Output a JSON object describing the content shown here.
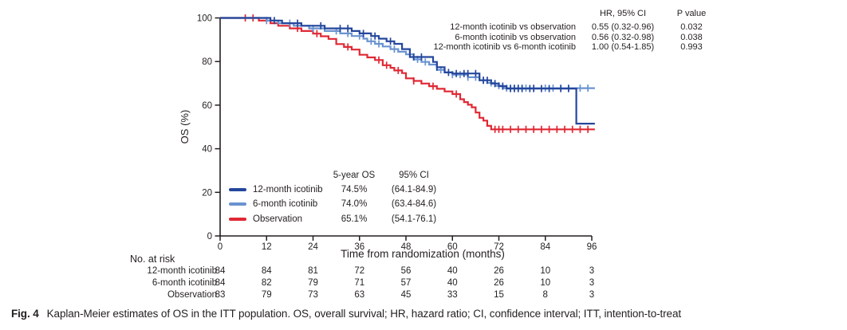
{
  "figure": {
    "caption_label": "Fig. 4",
    "caption_text": "Kaplan-Meier estimates of OS in the ITT population. OS, overall survival; HR, hazard ratio; CI, confidence interval; ITT, intention-to-treat"
  },
  "hr_table": {
    "col_hr": "HR, 95% CI",
    "col_p": "P value",
    "rows": [
      {
        "label": "12-month icotinib vs observation",
        "hr": "0.55 (0.32-0.96)",
        "p": "0.032"
      },
      {
        "label": "6-month icotinib vs observation",
        "hr": "0.56 (0.32-0.98)",
        "p": "0.038"
      },
      {
        "label": "12-month icotinib vs 6-month icotinib",
        "hr": "1.00 (0.54-1.85)",
        "p": "0.993"
      }
    ]
  },
  "legend": {
    "col_os": "5-year OS",
    "col_ci": "95% CI",
    "rows": [
      {
        "label": "12-month icotinib",
        "os": "74.5%",
        "ci": "(64.1-84.9)",
        "color": "#24479c"
      },
      {
        "label": "6-month icotinib",
        "os": "74.0%",
        "ci": "(63.4-84.6)",
        "color": "#6a93d0"
      },
      {
        "label": "Observation",
        "os": "65.1%",
        "ci": "(54.1-76.1)",
        "color": "#e02834"
      }
    ]
  },
  "at_risk": {
    "title": "No. at risk",
    "rows": [
      {
        "label": "12-month icotinib",
        "counts": [
          84,
          84,
          81,
          72,
          56,
          40,
          26,
          10,
          3
        ]
      },
      {
        "label": "6-month icotinib",
        "counts": [
          84,
          82,
          79,
          71,
          57,
          40,
          26,
          10,
          3
        ]
      },
      {
        "label": "Observation",
        "counts": [
          83,
          79,
          73,
          63,
          45,
          33,
          15,
          8,
          3
        ]
      }
    ]
  },
  "chart_data": {
    "type": "line",
    "subtype": "kaplan-meier-step",
    "title": "",
    "xlabel": "Time from randomization (months)",
    "ylabel": "OS (%)",
    "xlim": [
      0,
      96
    ],
    "ylim": [
      0,
      100
    ],
    "x_ticks": [
      0,
      12,
      24,
      36,
      48,
      60,
      72,
      84,
      96
    ],
    "y_ticks": [
      0,
      20,
      40,
      60,
      80,
      100
    ],
    "grid": false,
    "legend_position": "inside-lower-left",
    "axis_color": "#231f20",
    "series": [
      {
        "name": "Observation",
        "color": "#e02834",
        "five_year_os": 65.1,
        "five_year_ci": "(54.1-76.1)",
        "steps": [
          [
            0,
            100
          ],
          [
            10,
            98.8
          ],
          [
            13,
            97.6
          ],
          [
            15,
            96.4
          ],
          [
            18,
            95.2
          ],
          [
            21,
            94.0
          ],
          [
            24,
            92.8
          ],
          [
            26,
            91.6
          ],
          [
            28,
            90.4
          ],
          [
            30,
            88.0
          ],
          [
            32,
            86.7
          ],
          [
            34,
            85.5
          ],
          [
            36,
            83.1
          ],
          [
            38,
            81.9
          ],
          [
            40,
            80.7
          ],
          [
            42,
            78.3
          ],
          [
            44,
            77.1
          ],
          [
            45,
            75.9
          ],
          [
            47,
            74.7
          ],
          [
            48,
            72.3
          ],
          [
            50,
            71.1
          ],
          [
            52,
            69.9
          ],
          [
            54,
            68.7
          ],
          [
            56,
            67.5
          ],
          [
            58,
            66.3
          ],
          [
            60,
            65.1
          ],
          [
            62,
            62.7
          ],
          [
            63,
            61.4
          ],
          [
            64,
            60.2
          ],
          [
            65,
            59.0
          ],
          [
            66,
            56.6
          ],
          [
            67,
            54.2
          ],
          [
            68,
            52.9
          ],
          [
            69,
            50.5
          ],
          [
            70,
            48.9
          ],
          [
            96.8,
            48.9
          ]
        ],
        "censors": [
          6.5,
          8.5,
          20,
          25,
          33,
          41,
          43,
          46,
          50,
          55,
          61,
          71,
          72,
          73,
          75,
          77,
          79,
          81,
          83,
          85,
          87,
          89,
          91,
          93,
          95
        ]
      },
      {
        "name": "6-month icotinib",
        "color": "#6a93d0",
        "five_year_os": 74.0,
        "five_year_ci": "(63.4-84.6)",
        "steps": [
          [
            0,
            100
          ],
          [
            12,
            98.8
          ],
          [
            15,
            97.6
          ],
          [
            19,
            96.4
          ],
          [
            23,
            95.2
          ],
          [
            27,
            94.0
          ],
          [
            31,
            92.9
          ],
          [
            34,
            91.7
          ],
          [
            37,
            90.5
          ],
          [
            38,
            89.3
          ],
          [
            40,
            88.1
          ],
          [
            42,
            86.9
          ],
          [
            44,
            85.7
          ],
          [
            46,
            84.5
          ],
          [
            48,
            83.3
          ],
          [
            50,
            81.0
          ],
          [
            52,
            79.8
          ],
          [
            54,
            78.6
          ],
          [
            56,
            76.2
          ],
          [
            58,
            75.0
          ],
          [
            60,
            74.0
          ],
          [
            64,
            72.8
          ],
          [
            67,
            71.4
          ],
          [
            69,
            70.2
          ],
          [
            71,
            68.9
          ],
          [
            73,
            67.8
          ],
          [
            96.8,
            67.8
          ]
        ],
        "censors": [
          12,
          18,
          24,
          30,
          33,
          36,
          39,
          41,
          45,
          49,
          51,
          53,
          57,
          60,
          62,
          64,
          66,
          68,
          70,
          72,
          74,
          75,
          76,
          77,
          78,
          79,
          81,
          84,
          86,
          88,
          90,
          93,
          95
        ]
      },
      {
        "name": "12-month icotinib",
        "color": "#24479c",
        "five_year_os": 74.5,
        "five_year_ci": "(64.1-84.9)",
        "steps": [
          [
            0,
            100
          ],
          [
            13,
            98.8
          ],
          [
            16,
            97.6
          ],
          [
            21,
            96.4
          ],
          [
            27,
            95.2
          ],
          [
            34,
            94.0
          ],
          [
            36,
            92.9
          ],
          [
            39,
            91.7
          ],
          [
            41,
            90.5
          ],
          [
            43,
            89.3
          ],
          [
            45,
            88.1
          ],
          [
            47,
            85.7
          ],
          [
            49,
            82.1
          ],
          [
            55,
            79.8
          ],
          [
            56,
            77.4
          ],
          [
            58,
            75.0
          ],
          [
            60,
            74.5
          ],
          [
            67,
            71.4
          ],
          [
            70,
            69.9
          ],
          [
            72,
            68.7
          ],
          [
            74,
            67.6
          ],
          [
            92,
            51.5
          ],
          [
            96.8,
            51.5
          ]
        ],
        "censors": [
          14,
          20,
          26,
          31,
          33,
          37,
          40,
          44,
          50,
          52,
          56,
          59,
          61,
          63,
          64,
          66,
          68,
          69,
          71,
          73,
          75,
          76,
          77,
          78,
          80,
          81,
          83,
          85,
          88,
          90
        ]
      }
    ]
  }
}
